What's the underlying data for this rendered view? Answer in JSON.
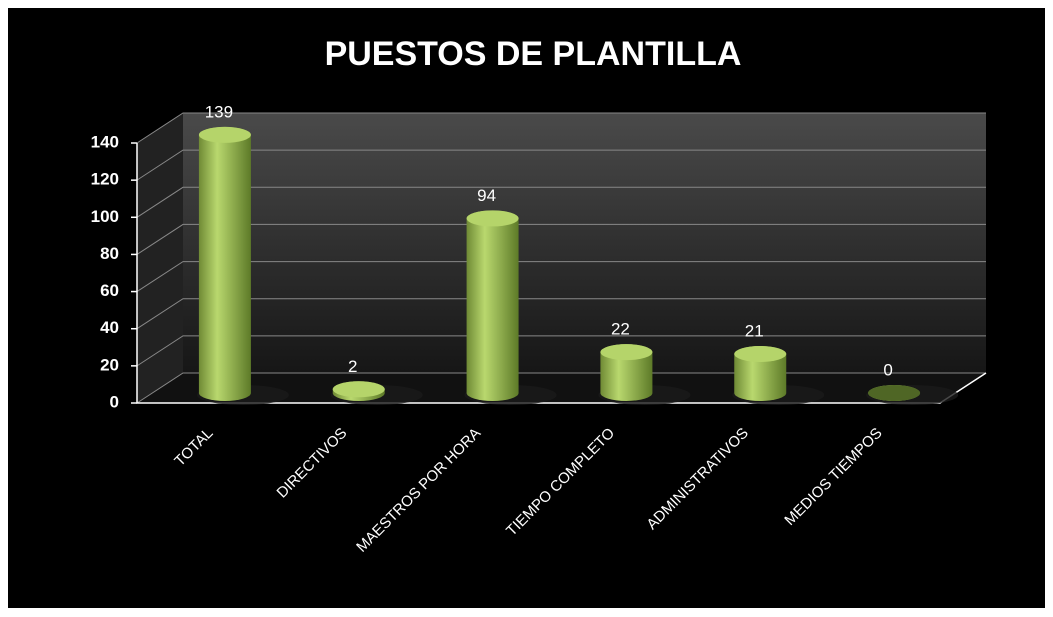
{
  "chart_data": {
    "type": "bar",
    "title": "PUESTOS DE PLANTILLA",
    "categories": [
      "TOTAL",
      "DIRECTIVOS",
      "MAESTROS POR HORA",
      "TIEMPO COMPLETO",
      "ADMINISTRATIVOS",
      "MEDIOS TIEMPOS"
    ],
    "values": [
      139,
      2,
      94,
      22,
      21,
      0
    ],
    "color": "#9bbb59",
    "ylim": [
      0,
      140
    ],
    "yticks": [
      0,
      20,
      40,
      60,
      80,
      100,
      120,
      140
    ],
    "grid": true
  }
}
